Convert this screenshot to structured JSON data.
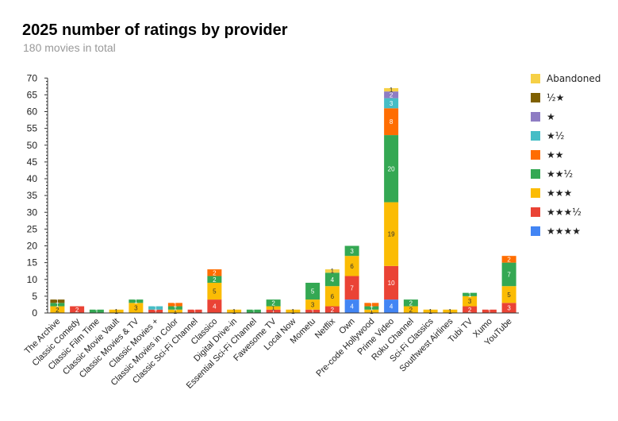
{
  "chart_data": {
    "type": "bar",
    "stacked": true,
    "title": "2025 number of ratings by provider",
    "subtitle": "180 movies in total",
    "xlabel": "",
    "ylabel": "",
    "ylim": [
      0,
      70
    ],
    "yticks": [
      "0",
      "5",
      "10",
      "15",
      "20",
      "25",
      "30",
      "35",
      "40",
      "45",
      "50",
      "55",
      "60",
      "65",
      "70"
    ],
    "grid": false,
    "legend_position": "right",
    "categories": [
      "The Archive",
      "Classic Comedy",
      "Classic Film Time",
      "Classic Movie Vault",
      "Classic Movies & TV",
      "Classic Movies +",
      "Classic Movies in Color",
      "Classic Sci-Fi Channel",
      "Classico",
      "Digital Drive-in",
      "Essential Sci-Fi Channel",
      "Fawesome TV",
      "Local Now",
      "Mometu",
      "Netflix",
      "Own",
      "Pre-code Hollywood",
      "Prime Video",
      "Roku Channel",
      "Sci-Fi Classics",
      "Southwest Airlines",
      "Tubi TV",
      "Xumo",
      "YouTube"
    ],
    "series": [
      {
        "name": "★★★★",
        "color": "#4285f4",
        "values": [
          0,
          0,
          0,
          0,
          0,
          0,
          0,
          0,
          0,
          0,
          0,
          0,
          0,
          0,
          0,
          4,
          0,
          4,
          0,
          0,
          0,
          0,
          0,
          0
        ]
      },
      {
        "name": "★★★½",
        "color": "#ea4335",
        "values": [
          0,
          2,
          0,
          0,
          0,
          1,
          0,
          1,
          4,
          0,
          0,
          1,
          0,
          1,
          2,
          7,
          0,
          10,
          0,
          0,
          0,
          2,
          1,
          3
        ]
      },
      {
        "name": "★★★",
        "color": "#fbbc04",
        "values": [
          2,
          0,
          0,
          1,
          3,
          0,
          1,
          0,
          5,
          1,
          0,
          1,
          1,
          3,
          6,
          6,
          1,
          19,
          2,
          1,
          1,
          3,
          0,
          5
        ]
      },
      {
        "name": "★★½",
        "color": "#34a853",
        "values": [
          1,
          0,
          1,
          0,
          1,
          0,
          1,
          0,
          2,
          0,
          1,
          2,
          0,
          5,
          4,
          3,
          1,
          20,
          2,
          0,
          0,
          1,
          0,
          7
        ]
      },
      {
        "name": "★★",
        "color": "#ff6d01",
        "values": [
          0,
          0,
          0,
          0,
          0,
          0,
          1,
          0,
          2,
          0,
          0,
          0,
          0,
          0,
          0,
          0,
          1,
          8,
          0,
          0,
          0,
          0,
          0,
          2
        ]
      },
      {
        "name": "★½",
        "color": "#46bdc6",
        "values": [
          0,
          0,
          0,
          0,
          0,
          1,
          0,
          0,
          0,
          0,
          0,
          0,
          0,
          0,
          0,
          0,
          0,
          3,
          0,
          0,
          0,
          0,
          0,
          0
        ]
      },
      {
        "name": "★",
        "color": "#8e7cc3",
        "values": [
          0,
          0,
          0,
          0,
          0,
          0,
          0,
          0,
          0,
          0,
          0,
          0,
          0,
          0,
          0,
          0,
          0,
          2,
          0,
          0,
          0,
          0,
          0,
          0
        ]
      },
      {
        "name": "½★",
        "color": "#7f6000",
        "values": [
          1,
          0,
          0,
          0,
          0,
          0,
          0,
          0,
          0,
          0,
          0,
          0,
          0,
          0,
          0,
          0,
          0,
          0,
          0,
          0,
          0,
          0,
          0,
          0
        ]
      },
      {
        "name": "Abandoned",
        "color": "#f6d046",
        "values": [
          0,
          0,
          0,
          0,
          0,
          0,
          0,
          0,
          0,
          0,
          0,
          0,
          0,
          0,
          1,
          0,
          0,
          1,
          0,
          0,
          0,
          0,
          0,
          0
        ]
      }
    ]
  }
}
